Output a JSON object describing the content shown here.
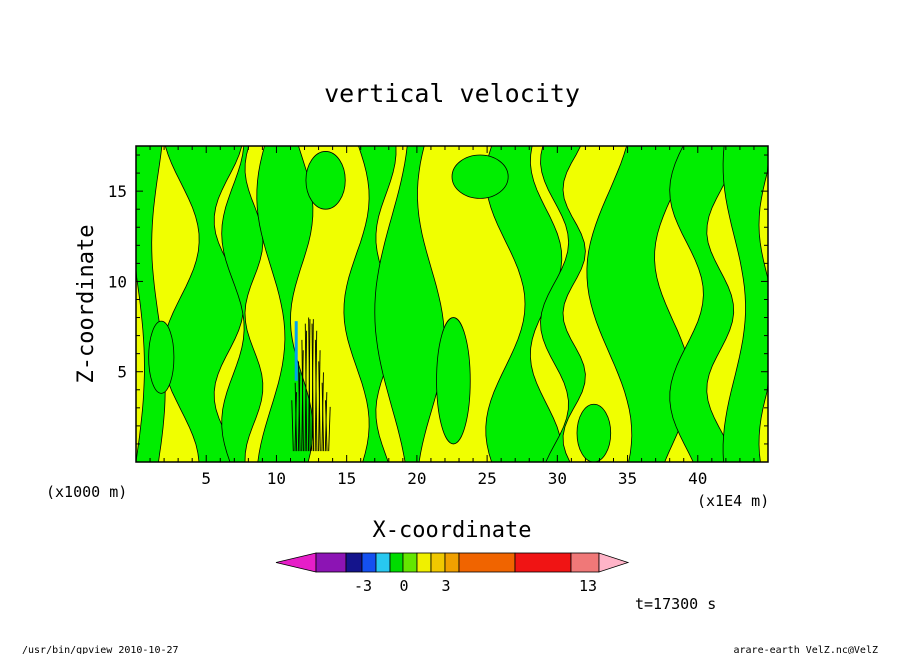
{
  "chart_data": {
    "type": "heatmap",
    "title": "vertical velocity",
    "xlabel": "X-coordinate",
    "ylabel": "Z-coordinate",
    "x_unit_left": "(x1000 m)",
    "x_unit_right": "(x1E4 m)",
    "xlim": [
      0,
      45
    ],
    "ylim": [
      0,
      17.5
    ],
    "x_ticks": [
      "5",
      "10",
      "15",
      "20",
      "25",
      "30",
      "35",
      "40"
    ],
    "y_ticks": [
      "5",
      "10",
      "15"
    ],
    "colorbar": {
      "colors": [
        "#e61ec8",
        "#8c14b4",
        "#14148c",
        "#1450f0",
        "#28c8f0",
        "#00dc00",
        "#64e600",
        "#f0f000",
        "#f0c800",
        "#f0a000",
        "#f06400",
        "#f01414",
        "#f07878",
        "#ffb4c8"
      ],
      "labels": [
        "-3",
        "0",
        "3",
        "13"
      ]
    },
    "fill_colors": {
      "negative": "#00ee00",
      "positive": "#f0ff00",
      "strong_negative": "#00a0f0"
    },
    "time_label": "t=17300 s"
  },
  "footer": {
    "left": "/usr/bin/gpview   2010-10-27",
    "right": "arare-earth_VelZ.nc@VelZ"
  }
}
